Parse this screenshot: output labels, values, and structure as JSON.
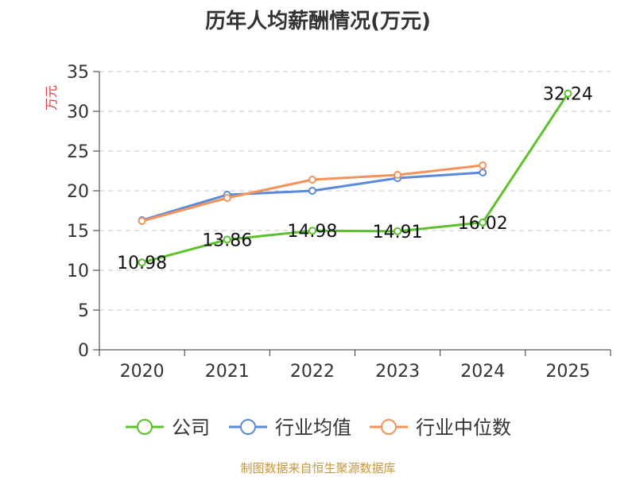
{
  "chart_data": {
    "type": "line",
    "title": "历年人均薪酬情况(万元)",
    "ylabel": "万元",
    "xlabel": "",
    "categories": [
      "2020",
      "2021",
      "2022",
      "2023",
      "2024",
      "2025"
    ],
    "ylim": [
      0,
      35
    ],
    "yticks": [
      0,
      5,
      10,
      15,
      20,
      25,
      30,
      35
    ],
    "grid": true,
    "legend_position": "bottom",
    "series": [
      {
        "name": "公司",
        "color": "#5cc12b",
        "values": [
          10.98,
          13.86,
          14.98,
          14.91,
          16.02,
          32.24
        ],
        "labels": [
          "10.98",
          "13.86",
          "14.98",
          "14.91",
          "16.02",
          "32.24"
        ]
      },
      {
        "name": "行业均值",
        "color": "#5b8ad9",
        "values": [
          16.3,
          19.5,
          20.0,
          21.6,
          22.3,
          null
        ]
      },
      {
        "name": "行业中位数",
        "color": "#f3935a",
        "values": [
          16.2,
          19.1,
          21.4,
          22.0,
          23.2,
          null
        ]
      }
    ],
    "ylabel_color": "#e03c3c"
  },
  "source": "制图数据来自恒生聚源数据库"
}
